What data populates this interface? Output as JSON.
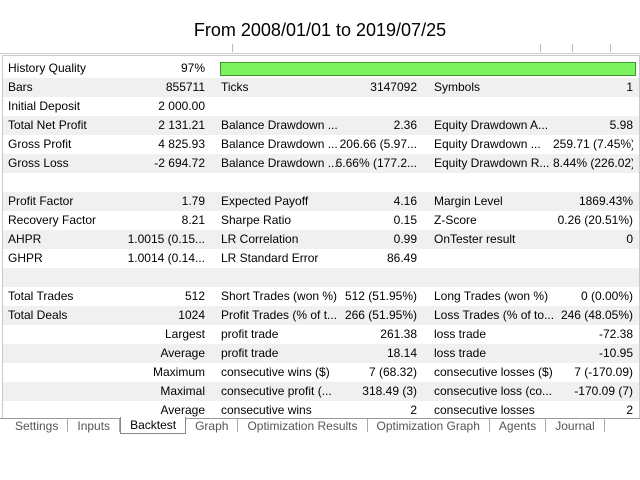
{
  "header": {
    "title": "From 2008/01/01 to 2019/07/25"
  },
  "history_quality": {
    "label": "History Quality",
    "value": "97%"
  },
  "sections": [
    [
      [
        {
          "label": "Bars",
          "value": "855711"
        },
        {
          "label": "Ticks",
          "value": "3147092"
        },
        {
          "label": "Symbols",
          "value": "1"
        }
      ],
      [
        {
          "label": "Initial Deposit",
          "value": "2 000.00"
        },
        null,
        null
      ],
      [
        {
          "label": "Total Net Profit",
          "value": "2 131.21"
        },
        {
          "label": "Balance Drawdown ...",
          "value": "2.36"
        },
        {
          "label": "Equity Drawdown A...",
          "value": "5.98"
        }
      ],
      [
        {
          "label": "Gross Profit",
          "value": "4 825.93"
        },
        {
          "label": "Balance Drawdown ...",
          "value": "206.66 (5.97..."
        },
        {
          "label": "Equity Drawdown ...",
          "value": "259.71 (7.45%)"
        }
      ],
      [
        {
          "label": "Gross Loss",
          "value": "-2 694.72"
        },
        {
          "label": "Balance Drawdown ...",
          "value": "6.66% (177.2..."
        },
        {
          "label": "Equity Drawdown R...",
          "value": "8.44% (226.02)"
        }
      ]
    ],
    [
      [
        {
          "label": "Profit Factor",
          "value": "1.79"
        },
        {
          "label": "Expected Payoff",
          "value": "4.16"
        },
        {
          "label": "Margin Level",
          "value": "1869.43%"
        }
      ],
      [
        {
          "label": "Recovery Factor",
          "value": "8.21"
        },
        {
          "label": "Sharpe Ratio",
          "value": "0.15"
        },
        {
          "label": "Z-Score",
          "value": "0.26 (20.51%)"
        }
      ],
      [
        {
          "label": "AHPR",
          "value": "1.0015 (0.15..."
        },
        {
          "label": "LR Correlation",
          "value": "0.99"
        },
        {
          "label": "OnTester result",
          "value": "0"
        }
      ],
      [
        {
          "label": "GHPR",
          "value": "1.0014 (0.14..."
        },
        {
          "label": "LR Standard Error",
          "value": "86.49"
        },
        null
      ]
    ],
    [
      [
        {
          "label": "Total Trades",
          "value": "512"
        },
        {
          "label": "Short Trades (won %)",
          "value": "512 (51.95%)"
        },
        {
          "label": "Long Trades (won %)",
          "value": "0 (0.00%)"
        }
      ],
      [
        {
          "label": "Total Deals",
          "value": "1024"
        },
        {
          "label": "Profit Trades (% of t...",
          "value": "266 (51.95%)"
        },
        {
          "label": "Loss Trades (% of to...",
          "value": "246 (48.05%)"
        }
      ],
      [
        {
          "label": "Largest"
        },
        {
          "label": "profit trade",
          "value": "261.38"
        },
        {
          "label": "loss trade",
          "value": "-72.38"
        }
      ],
      [
        {
          "label": "Average"
        },
        {
          "label": "profit trade",
          "value": "18.14"
        },
        {
          "label": "loss trade",
          "value": "-10.95"
        }
      ],
      [
        {
          "label": "Maximum"
        },
        {
          "label": "consecutive wins ($)",
          "value": "7 (68.32)"
        },
        {
          "label": "consecutive losses ($)",
          "value": "7 (-170.09)"
        }
      ],
      [
        {
          "label": "Maximal"
        },
        {
          "label": "consecutive profit (...",
          "value": "318.49 (3)"
        },
        {
          "label": "consecutive loss (co...",
          "value": "-170.09 (7)"
        }
      ],
      [
        {
          "label": "Average"
        },
        {
          "label": "consecutive wins",
          "value": "2"
        },
        {
          "label": "consecutive losses",
          "value": "2"
        }
      ]
    ]
  ],
  "tabs": [
    "Settings",
    "Inputs",
    "Backtest",
    "Graph",
    "Optimization Results",
    "Optimization Graph",
    "Agents",
    "Journal"
  ],
  "active_tab": 2
}
